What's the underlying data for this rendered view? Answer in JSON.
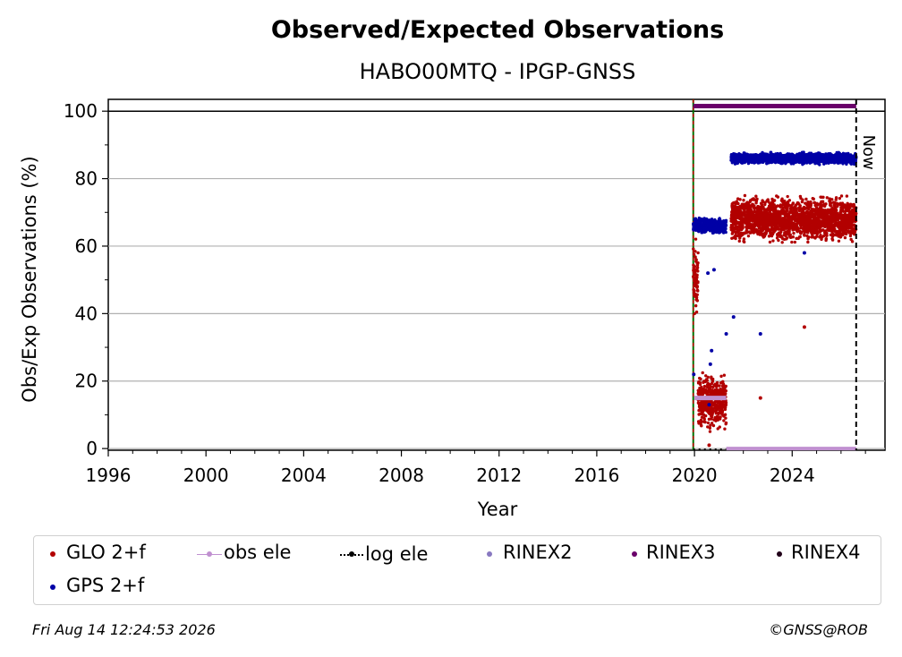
{
  "chart_data": {
    "type": "scatter",
    "title": "Observed/Expected Observations",
    "subtitle": "HABO00MTQ - IPGP-GNSS",
    "xlabel": "Year",
    "ylabel": "Obs/Exp Observations (%)",
    "xlim": [
      1996,
      2027.8
    ],
    "ylim": [
      -0.5,
      103.5
    ],
    "x_ticks": [
      "1996",
      "2000",
      "2004",
      "2008",
      "2012",
      "2016",
      "2020",
      "2024"
    ],
    "y_ticks": [
      "0",
      "20",
      "40",
      "60",
      "80",
      "100"
    ],
    "grid": "horizontal",
    "legend_position": "bottom",
    "now_label": "Now",
    "now_x": 2026.62,
    "rinex_start": 2019.95,
    "series": [
      {
        "name": "GLO 2+f",
        "color": "#b20000",
        "segments": [
          {
            "x": [
              2019.95,
              2020.15
            ],
            "center": 50,
            "spread": 12
          },
          {
            "x": [
              2020.15,
              2021.3
            ],
            "center": 14,
            "spread": 7
          },
          {
            "x": [
              2021.5,
              2026.62
            ],
            "center": 68,
            "spread": 6
          }
        ],
        "outliers": [
          [
            2020.6,
            1
          ],
          [
            2022.7,
            15
          ],
          [
            2024.5,
            36
          ]
        ]
      },
      {
        "name": "GPS 2+f",
        "color": "#0000a6",
        "segments": [
          {
            "x": [
              2019.95,
              2021.3
            ],
            "center": 66,
            "spread": 2
          },
          {
            "x": [
              2021.5,
              2026.62
            ],
            "center": 86,
            "spread": 1.5
          }
        ],
        "outliers": [
          [
            2019.97,
            22
          ],
          [
            2020.55,
            52
          ],
          [
            2020.8,
            53
          ],
          [
            2020.7,
            29
          ],
          [
            2020.65,
            25
          ],
          [
            2020.6,
            13
          ],
          [
            2021.3,
            34
          ],
          [
            2021.6,
            39
          ],
          [
            2022.7,
            34
          ],
          [
            2024.5,
            58
          ]
        ]
      },
      {
        "name": "obs ele",
        "color": "#c090d0",
        "points": [
          [
            2020.0,
            15
          ],
          [
            2021.3,
            15
          ]
        ]
      },
      {
        "name": "log ele",
        "color": "#000000",
        "points": [
          [
            2019.95,
            0
          ],
          [
            2021.3,
            0
          ]
        ]
      },
      {
        "name": "RINEX2",
        "color": "#8878c0"
      },
      {
        "name": "RINEX3",
        "color": "#6a006a",
        "points": [
          [
            2019.95,
            101.5
          ],
          [
            2026.62,
            101.5
          ]
        ]
      },
      {
        "name": "RINEX4",
        "color": "#200018"
      }
    ]
  },
  "footer": {
    "timestamp": "Fri Aug 14 12:24:53 2026",
    "copyright": "©GNSS@ROB"
  }
}
